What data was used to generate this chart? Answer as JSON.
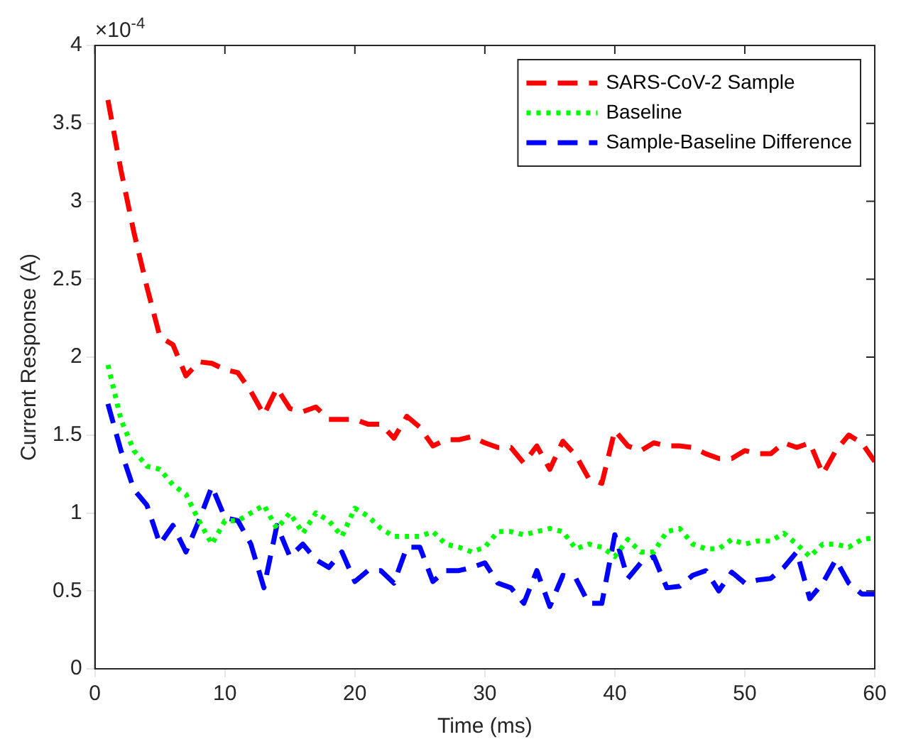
{
  "chart_data": {
    "type": "line",
    "xlabel": "Time (ms)",
    "ylabel": "Current Response (A)",
    "annotations": [
      "×10$^{-4}$"
    ],
    "x": [
      1,
      2,
      3,
      4,
      5,
      6,
      7,
      8,
      9,
      10,
      11,
      12,
      13,
      14,
      15,
      16,
      17,
      18,
      19,
      20,
      21,
      22,
      23,
      24,
      25,
      26,
      27,
      28,
      29,
      30,
      31,
      32,
      33,
      34,
      35,
      36,
      37,
      38,
      39,
      40,
      41,
      42,
      43,
      44,
      45,
      46,
      47,
      48,
      49,
      50,
      51,
      52,
      53,
      54,
      55,
      56,
      57,
      58,
      59,
      60
    ],
    "xlim": [
      0,
      60
    ],
    "xticks": [
      0,
      10,
      20,
      30,
      40,
      50,
      60
    ],
    "ylim": [
      0,
      4
    ],
    "yticks": [
      0,
      0.5,
      1,
      1.5,
      2,
      2.5,
      3,
      3.5,
      4
    ],
    "grid": false,
    "legend": "top right",
    "marker": "none",
    "series": [
      {
        "name": "SARS-CoV-2 Sample",
        "color": "#ff0000",
        "line_style": "dashed",
        "values": [
          3.65,
          3.2,
          2.8,
          2.45,
          2.13,
          2.08,
          1.88,
          1.97,
          1.96,
          1.92,
          1.9,
          1.78,
          1.63,
          1.8,
          1.67,
          1.65,
          1.68,
          1.6,
          1.6,
          1.6,
          1.57,
          1.57,
          1.48,
          1.62,
          1.55,
          1.43,
          1.47,
          1.47,
          1.49,
          1.45,
          1.42,
          1.42,
          1.32,
          1.43,
          1.28,
          1.46,
          1.37,
          1.22,
          1.19,
          1.53,
          1.43,
          1.4,
          1.45,
          1.43,
          1.43,
          1.42,
          1.38,
          1.35,
          1.35,
          1.4,
          1.38,
          1.38,
          1.45,
          1.42,
          1.45,
          1.25,
          1.4,
          1.5,
          1.45,
          1.33
        ]
      },
      {
        "name": "Baseline",
        "color": "#00ff00",
        "line_style": "dotted",
        "values": [
          1.95,
          1.6,
          1.4,
          1.3,
          1.28,
          1.18,
          1.12,
          0.95,
          0.8,
          0.95,
          0.95,
          1,
          1.05,
          0.9,
          1,
          0.87,
          1,
          0.95,
          0.85,
          1.03,
          0.98,
          0.9,
          0.85,
          0.85,
          0.85,
          0.88,
          0.8,
          0.78,
          0.75,
          0.78,
          0.88,
          0.88,
          0.86,
          0.88,
          0.9,
          0.88,
          0.77,
          0.8,
          0.78,
          0.72,
          0.83,
          0.75,
          0.75,
          0.88,
          0.9,
          0.8,
          0.77,
          0.77,
          0.83,
          0.8,
          0.82,
          0.82,
          0.87,
          0.8,
          0.72,
          0.8,
          0.8,
          0.78,
          0.83,
          0.84
        ]
      },
      {
        "name": "Sample-Baseline Difference",
        "color": "#0000ff",
        "line_style": "dashed",
        "values": [
          1.7,
          1.4,
          1.15,
          1.05,
          0.8,
          0.92,
          0.75,
          0.95,
          1.17,
          0.97,
          0.95,
          0.8,
          0.52,
          0.92,
          0.72,
          0.8,
          0.7,
          0.65,
          0.75,
          0.56,
          0.63,
          0.63,
          0.55,
          0.78,
          0.78,
          0.56,
          0.63,
          0.63,
          0.65,
          0.68,
          0.55,
          0.52,
          0.42,
          0.63,
          0.4,
          0.6,
          0.58,
          0.42,
          0.42,
          0.86,
          0.58,
          0.68,
          0.72,
          0.52,
          0.53,
          0.6,
          0.63,
          0.5,
          0.62,
          0.55,
          0.57,
          0.58,
          0.65,
          0.75,
          0.45,
          0.55,
          0.7,
          0.55,
          0.48,
          0.48
        ]
      }
    ]
  }
}
